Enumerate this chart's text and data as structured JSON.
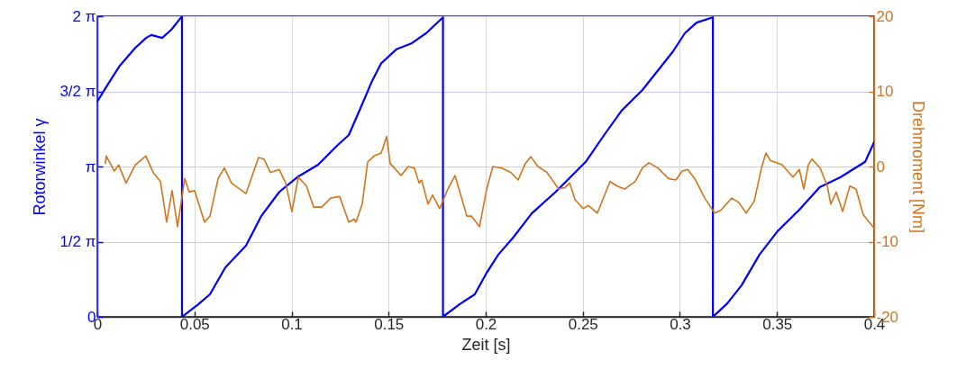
{
  "chart_data": {
    "type": "line",
    "xlabel": "Zeit [s]",
    "ylabel": "Rotorwinkel γ",
    "y2label": "Drehmoment [Nm]",
    "xlim": [
      0,
      0.4
    ],
    "xticks": [
      0,
      0.05,
      0.1,
      0.15,
      0.2,
      0.25,
      0.3,
      0.35,
      0.4
    ],
    "ylim": [
      0,
      6.2832
    ],
    "yticks": [
      0,
      {
        "value": 1.5708,
        "label": "1/2 π"
      },
      {
        "value": 3.1416,
        "label": "π"
      },
      {
        "value": 4.7124,
        "label": "3/2 π"
      },
      {
        "value": 6.2832,
        "label": "2 π"
      }
    ],
    "y2lim": [
      -20,
      20
    ],
    "y2ticks": [
      -20,
      -10,
      0,
      10,
      20
    ],
    "grid": true,
    "line_style": "solid",
    "marker": "none",
    "series": [
      {
        "color": "#0000ff",
        "x": [
          0,
          0.0056,
          0.0116,
          0.0195,
          0.0251,
          0.0278,
          0.0334,
          0.0381,
          0.0436,
          0.0436,
          0.052,
          0.058,
          0.0659,
          0.0766,
          0.0845,
          0.0937,
          0.103,
          0.1137,
          0.123,
          0.1295,
          0.1355,
          0.1415,
          0.1462,
          0.154,
          0.162,
          0.1694,
          0.178,
          0.178,
          0.1865,
          0.1944,
          0.2005,
          0.2065,
          0.2144,
          0.2237,
          0.236,
          0.2515,
          0.261,
          0.27,
          0.2807,
          0.2965,
          0.3026,
          0.3086,
          0.317,
          0.317,
          0.3244,
          0.3318,
          0.341,
          0.3503,
          0.3615,
          0.372,
          0.3828,
          0.3954,
          0.4
        ],
        "values": [
          4.5,
          4.87,
          5.25,
          5.62,
          5.83,
          5.89,
          5.83,
          6.0,
          6.28,
          0,
          0.26,
          0.47,
          1.03,
          1.49,
          2.11,
          2.61,
          2.92,
          3.18,
          3.56,
          3.8,
          4.36,
          4.93,
          5.3,
          5.59,
          5.72,
          5.93,
          6.26,
          0,
          0.26,
          0.47,
          0.92,
          1.3,
          1.67,
          2.16,
          2.61,
          3.24,
          3.8,
          4.31,
          4.74,
          5.55,
          5.93,
          6.15,
          6.26,
          0,
          0.28,
          0.66,
          1.3,
          1.79,
          2.24,
          2.71,
          2.92,
          3.24,
          3.65
        ]
      },
      {
        "color": "#d4731b",
        "axis": "y2",
        "x": [
          0.0042,
          0.0046,
          0.0088,
          0.011,
          0.0148,
          0.0195,
          0.025,
          0.0288,
          0.0325,
          0.0357,
          0.0385,
          0.0413,
          0.045,
          0.0473,
          0.0501,
          0.0552,
          0.058,
          0.0622,
          0.0654,
          0.0691,
          0.0766,
          0.083,
          0.0858,
          0.0891,
          0.0937,
          0.097,
          0.1002,
          0.1035,
          0.1077,
          0.1114,
          0.1155,
          0.1202,
          0.1248,
          0.1295,
          0.1323,
          0.1332,
          0.1364,
          0.1392,
          0.1425,
          0.1462,
          0.149,
          0.1508,
          0.1564,
          0.1601,
          0.1633,
          0.1657,
          0.167,
          0.1703,
          0.1726,
          0.1763,
          0.1805,
          0.1842,
          0.1903,
          0.1926,
          0.1968,
          0.2005,
          0.2037,
          0.2084,
          0.213,
          0.2167,
          0.2204,
          0.2232,
          0.2269,
          0.2316,
          0.2376,
          0.2408,
          0.2432,
          0.246,
          0.2501,
          0.2529,
          0.2575,
          0.264,
          0.2677,
          0.2715,
          0.277,
          0.2807,
          0.284,
          0.2886,
          0.2942,
          0.2979,
          0.3012,
          0.304,
          0.3081,
          0.3128,
          0.3179,
          0.3211,
          0.3267,
          0.3304,
          0.3341,
          0.3383,
          0.342,
          0.3443,
          0.3466,
          0.3527,
          0.3582,
          0.3615,
          0.3638,
          0.3661,
          0.368,
          0.3722,
          0.3759,
          0.3777,
          0.3805,
          0.3838,
          0.3875,
          0.3907,
          0.3944,
          0.4
        ],
        "values": [
          0.4,
          1.4,
          -0.6,
          0.2,
          -2.2,
          0.2,
          1.4,
          -0.8,
          -2.0,
          -7.4,
          -3.2,
          -8.0,
          -1.6,
          -3.4,
          -3.2,
          -7.4,
          -6.6,
          -1.6,
          -0.2,
          -2.2,
          -3.6,
          1.2,
          1.0,
          -0.8,
          -0.4,
          -2.2,
          -6.0,
          -1.4,
          -2.6,
          -5.4,
          -5.4,
          -4.2,
          -4.0,
          -7.4,
          -7.0,
          -7.4,
          -5.0,
          0.6,
          1.4,
          1.8,
          4.0,
          0.4,
          -1.2,
          0,
          -0.2,
          -2.2,
          -1.8,
          -5.0,
          -3.8,
          -5.6,
          -3.0,
          -1.2,
          -6.6,
          -6.6,
          -8.0,
          -3.0,
          0,
          -0.2,
          -0.8,
          -1.8,
          0.4,
          1.3,
          0,
          -0.8,
          -3.0,
          -2.8,
          -2.2,
          -4.4,
          -5.6,
          -5.2,
          -6.2,
          -2.0,
          -2.6,
          -3.0,
          -2.0,
          -0.2,
          0.5,
          -0.2,
          -1.6,
          -1.8,
          -0.6,
          -0.4,
          -1.8,
          -4.2,
          -6.2,
          -5.8,
          -4.2,
          -4.8,
          -6.2,
          -4.6,
          -0.2,
          1.8,
          0.8,
          0.2,
          -1.4,
          -0.4,
          -3.0,
          0.2,
          1.0,
          -0.2,
          -2.6,
          -5.0,
          -3.4,
          -6.0,
          -2.6,
          -3.0,
          -6.4,
          -8.2
        ]
      }
    ]
  }
}
